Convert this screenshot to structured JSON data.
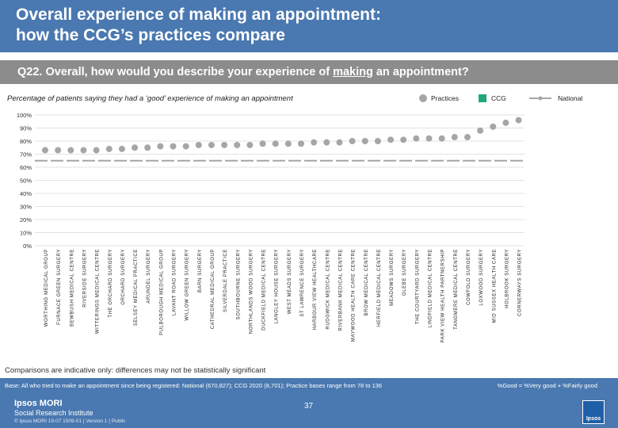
{
  "header": {
    "title": "Overall experience of making an appointment:\nhow the CCG’s practices compare"
  },
  "question": {
    "prefix": "Q22. Overall, how would you describe your experience of ",
    "emphasis": "making",
    "suffix": " an appointment?"
  },
  "subtitle": "Percentage of patients saying they had  a ‘good’ experience of making an appointment",
  "legend": {
    "practices": "Practices",
    "ccg": "CCG",
    "national": "National"
  },
  "colors": {
    "header": "#4a78b0",
    "question_bar": "#8c8c8c",
    "practice_marker": "#a6a6a6",
    "ccg_marker": "#1fa67a",
    "national_line": "#a6a6a6"
  },
  "chart_data": {
    "type": "scatter",
    "yticks": [
      "100%",
      "90%",
      "80%",
      "70%",
      "60%",
      "50%",
      "40%",
      "30%",
      "20%",
      "10%",
      "0%"
    ],
    "ylim": [
      0,
      100
    ],
    "categories": [
      "WORTHING MEDICAL GROUP",
      "FURNACE GREEN SURGERY",
      "BEWBUSH MEDICAL CENTRE",
      "RIVERSIDE SURGERY",
      "WITTERINGS MEDICAL CENTRE",
      "THE ORCHARD SURGERY",
      "ORCHARD SURGERY",
      "SELSEY MEDICAL PRACTICE",
      "ARUNDEL SURGERY",
      "PULBOROUGH MEDICAL GROUP",
      "LAVANT ROAD SURGERY",
      "WILLOW GREEN SURGERY",
      "BARN SURGERY",
      "CATHEDRAL MEDICAL GROUP",
      "SILVERDALE PRACTICE",
      "SOUTHBOURNE SURGERY",
      "NORTHLANDS WOOD SURGERY",
      "DUCKFIELD MEDICAL CENTRE",
      "LANGLEY HOUSE SURGERY",
      "WEST MEADS SURGERY",
      "ST LAWRENCE SURGERY",
      "HARBOUR VIEW HEALTHCARE",
      "RUDGWICK MEDICAL CENTRE",
      "RIVERBANK MEDICAL CENTRE",
      "MAYWOOD HEALTH CARE CENTRE",
      "BROW MEDICAL CENTRE",
      "HERFIELD MEDICAL CENTRE",
      "MEADOWS SURGERY",
      "GLEBE SURGERY",
      "THE COURTYARD SURGERY",
      "LINDFIELD MEDICAL CENTRE",
      "PARK VIEW HEALTH PARTNERSHIP",
      "TANGMERE MEDICAL CENTRE",
      "COWFOLD SURGERY",
      "LOXWOOD SURGERY",
      "MID SUSSEX HEALTH CARE",
      "HOLBROOK SURGERY",
      "CORNERWAYS SURGERY"
    ],
    "series": [
      {
        "name": "Practices",
        "values": [
          73,
          73,
          73,
          73,
          73,
          74,
          74,
          75,
          75,
          76,
          76,
          76,
          77,
          77,
          77,
          77,
          77,
          78,
          78,
          78,
          78,
          79,
          79,
          79,
          80,
          80,
          80,
          81,
          81,
          82,
          82,
          82,
          83,
          83,
          88,
          91,
          94,
          96
        ]
      },
      {
        "name": "National",
        "values": [
          65,
          65,
          65,
          65,
          65,
          65,
          65,
          65,
          65,
          65,
          65,
          65,
          65,
          65,
          65,
          65,
          65,
          65,
          65,
          65,
          65,
          65,
          65,
          65,
          65,
          65,
          65,
          65,
          65,
          65,
          65,
          65,
          65,
          65,
          65,
          65,
          65,
          65
        ]
      }
    ]
  },
  "note": "Comparisons are indicative only: differences may not be statistically significant",
  "base": "Base: All who tried to make an appointment since being registered: National (670,827); CCG 2020 (8,701); Practice bases range from 78 to 136",
  "definition": "%Good = %Very good + %Fairly good",
  "footer": {
    "brand_line1": "Ipsos MORI",
    "brand_line2": "Social Research Institute",
    "copyright": "© Ipsos MORI       19-07 1509-01 | Version 1 | Public",
    "page_number": "37",
    "logo_text": "Ipsos"
  }
}
